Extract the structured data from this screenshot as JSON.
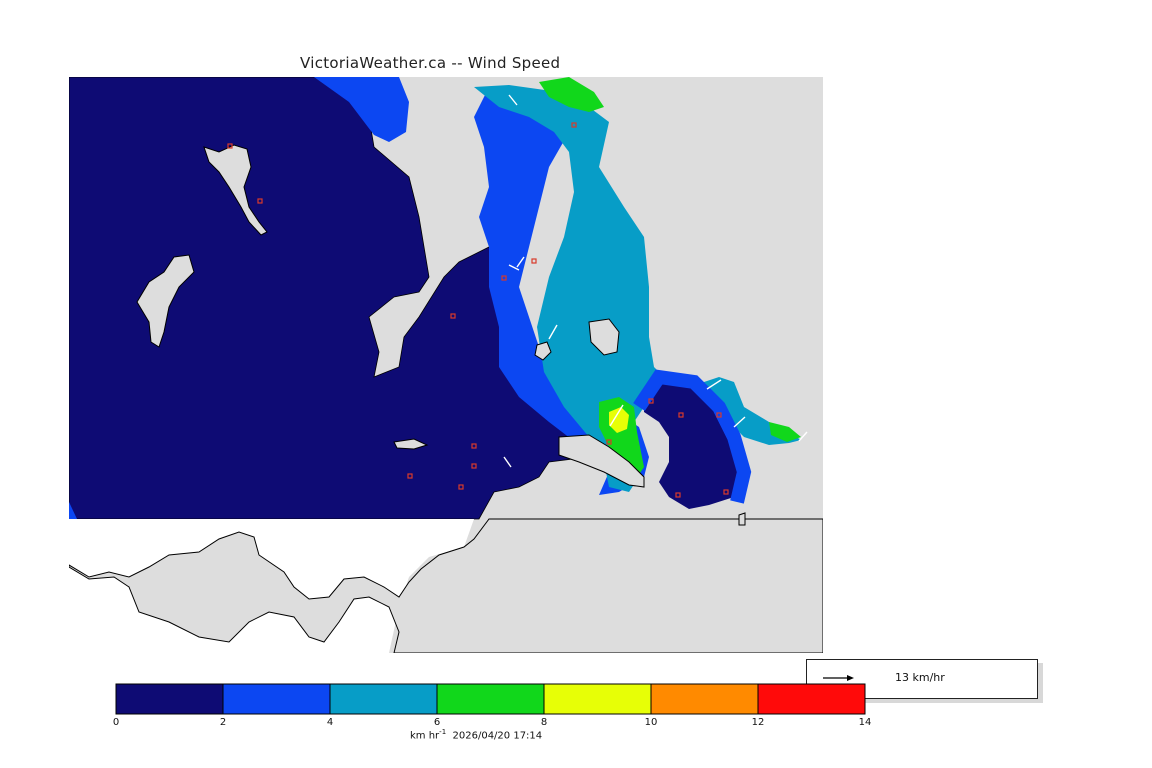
{
  "title": "VictoriaWeather.ca -- Wind Speed",
  "legend": {
    "reference_speed": "13 km/hr"
  },
  "colorbar": {
    "unit": "km hr",
    "unit_exponent": "-1",
    "timestamp": "2026/04/20 17:14",
    "ticks": [
      "0",
      "2",
      "4",
      "6",
      "8",
      "10",
      "12",
      "14"
    ],
    "bins": [
      {
        "from": 0,
        "to": 2,
        "color": "#0e0b74"
      },
      {
        "from": 2,
        "to": 4,
        "color": "#0c47f2"
      },
      {
        "from": 4,
        "to": 6,
        "color": "#079dc7"
      },
      {
        "from": 6,
        "to": 8,
        "color": "#11d71b"
      },
      {
        "from": 8,
        "to": 10,
        "color": "#e7ff06"
      },
      {
        "from": 10,
        "to": 12,
        "color": "#ff8a00"
      },
      {
        "from": 12,
        "to": 14,
        "color": "#ff0a0a"
      }
    ]
  },
  "colors": {
    "land": "#dddddd",
    "water_outside": "#ffffff",
    "station_marker": "#d83a2a"
  }
}
